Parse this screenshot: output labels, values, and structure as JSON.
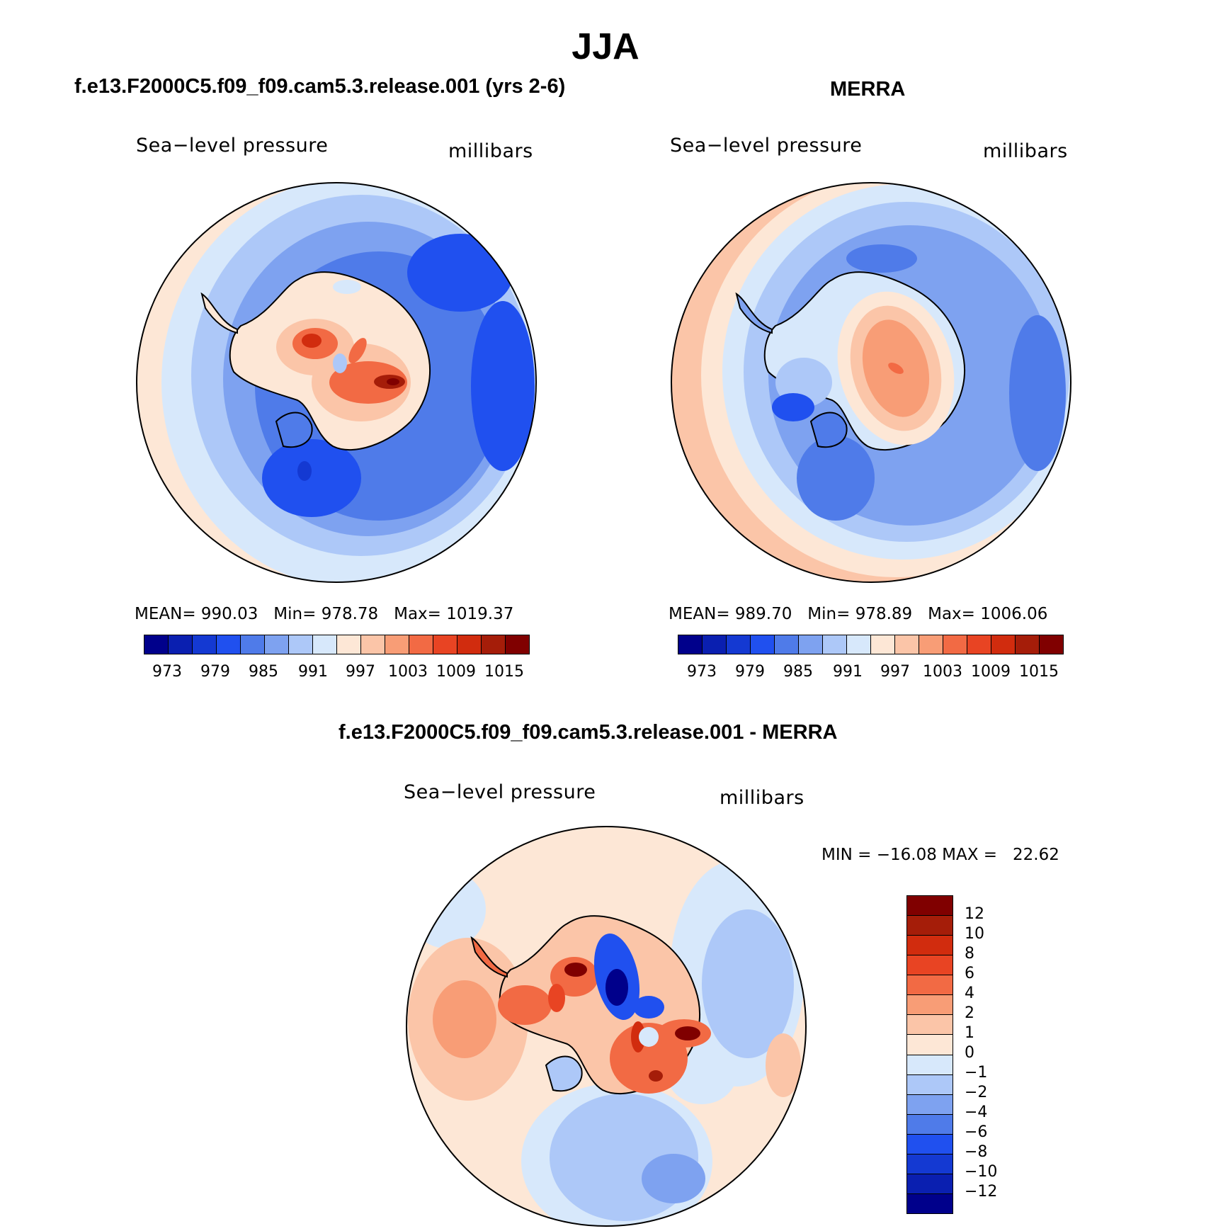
{
  "figure": {
    "season": "JJA"
  },
  "panels": [
    {
      "title": "f.e13.F2000C5.f09_f09.cam5.3.release.001 (yrs 2-6)",
      "left_label": "Sea−level pressure",
      "right_label": "millibars",
      "stats": "MEAN= 990.03   Min= 978.78   Max= 1019.37",
      "colorbar_ticks": [
        "973",
        "979",
        "985",
        "991",
        "997",
        "1003",
        "1009",
        "1015"
      ]
    },
    {
      "title": "MERRA",
      "left_label": "Sea−level pressure",
      "right_label": "millibars",
      "stats": "MEAN= 989.70   Min= 978.89   Max= 1006.06",
      "colorbar_ticks": [
        "973",
        "979",
        "985",
        "991",
        "997",
        "1003",
        "1009",
        "1015"
      ]
    },
    {
      "title": "f.e13.F2000C5.f09_f09.cam5.3.release.001 - MERRA",
      "left_label": "Sea−level pressure",
      "right_label": "millibars",
      "stats": "MIN = −16.08 MAX =   22.62",
      "colorbar_ticks": [
        "12",
        "10",
        "8",
        "6",
        "4",
        "2",
        "1",
        "0",
        "−1",
        "−2",
        "−4",
        "−6",
        "−8",
        "−10",
        "−12"
      ]
    }
  ],
  "colors": {
    "abs_scale": [
      "#00008b",
      "#0a1fb0",
      "#1439d2",
      "#2050ef",
      "#4f7be9",
      "#7ea2f0",
      "#adc8f8",
      "#d7e8fb",
      "#fde7d6",
      "#fbc5a8",
      "#f89d76",
      "#f26a44",
      "#e84423",
      "#d12c0e",
      "#a51d09",
      "#800000"
    ],
    "diff_scale": [
      "#800000",
      "#a51d09",
      "#d12c0e",
      "#e84423",
      "#f26a44",
      "#f89d76",
      "#fbc5a8",
      "#fde7d6",
      "#d7e8fb",
      "#adc8f8",
      "#7ea2f0",
      "#4f7be9",
      "#2050ef",
      "#1439d2",
      "#0a1fb0",
      "#00008b"
    ]
  }
}
